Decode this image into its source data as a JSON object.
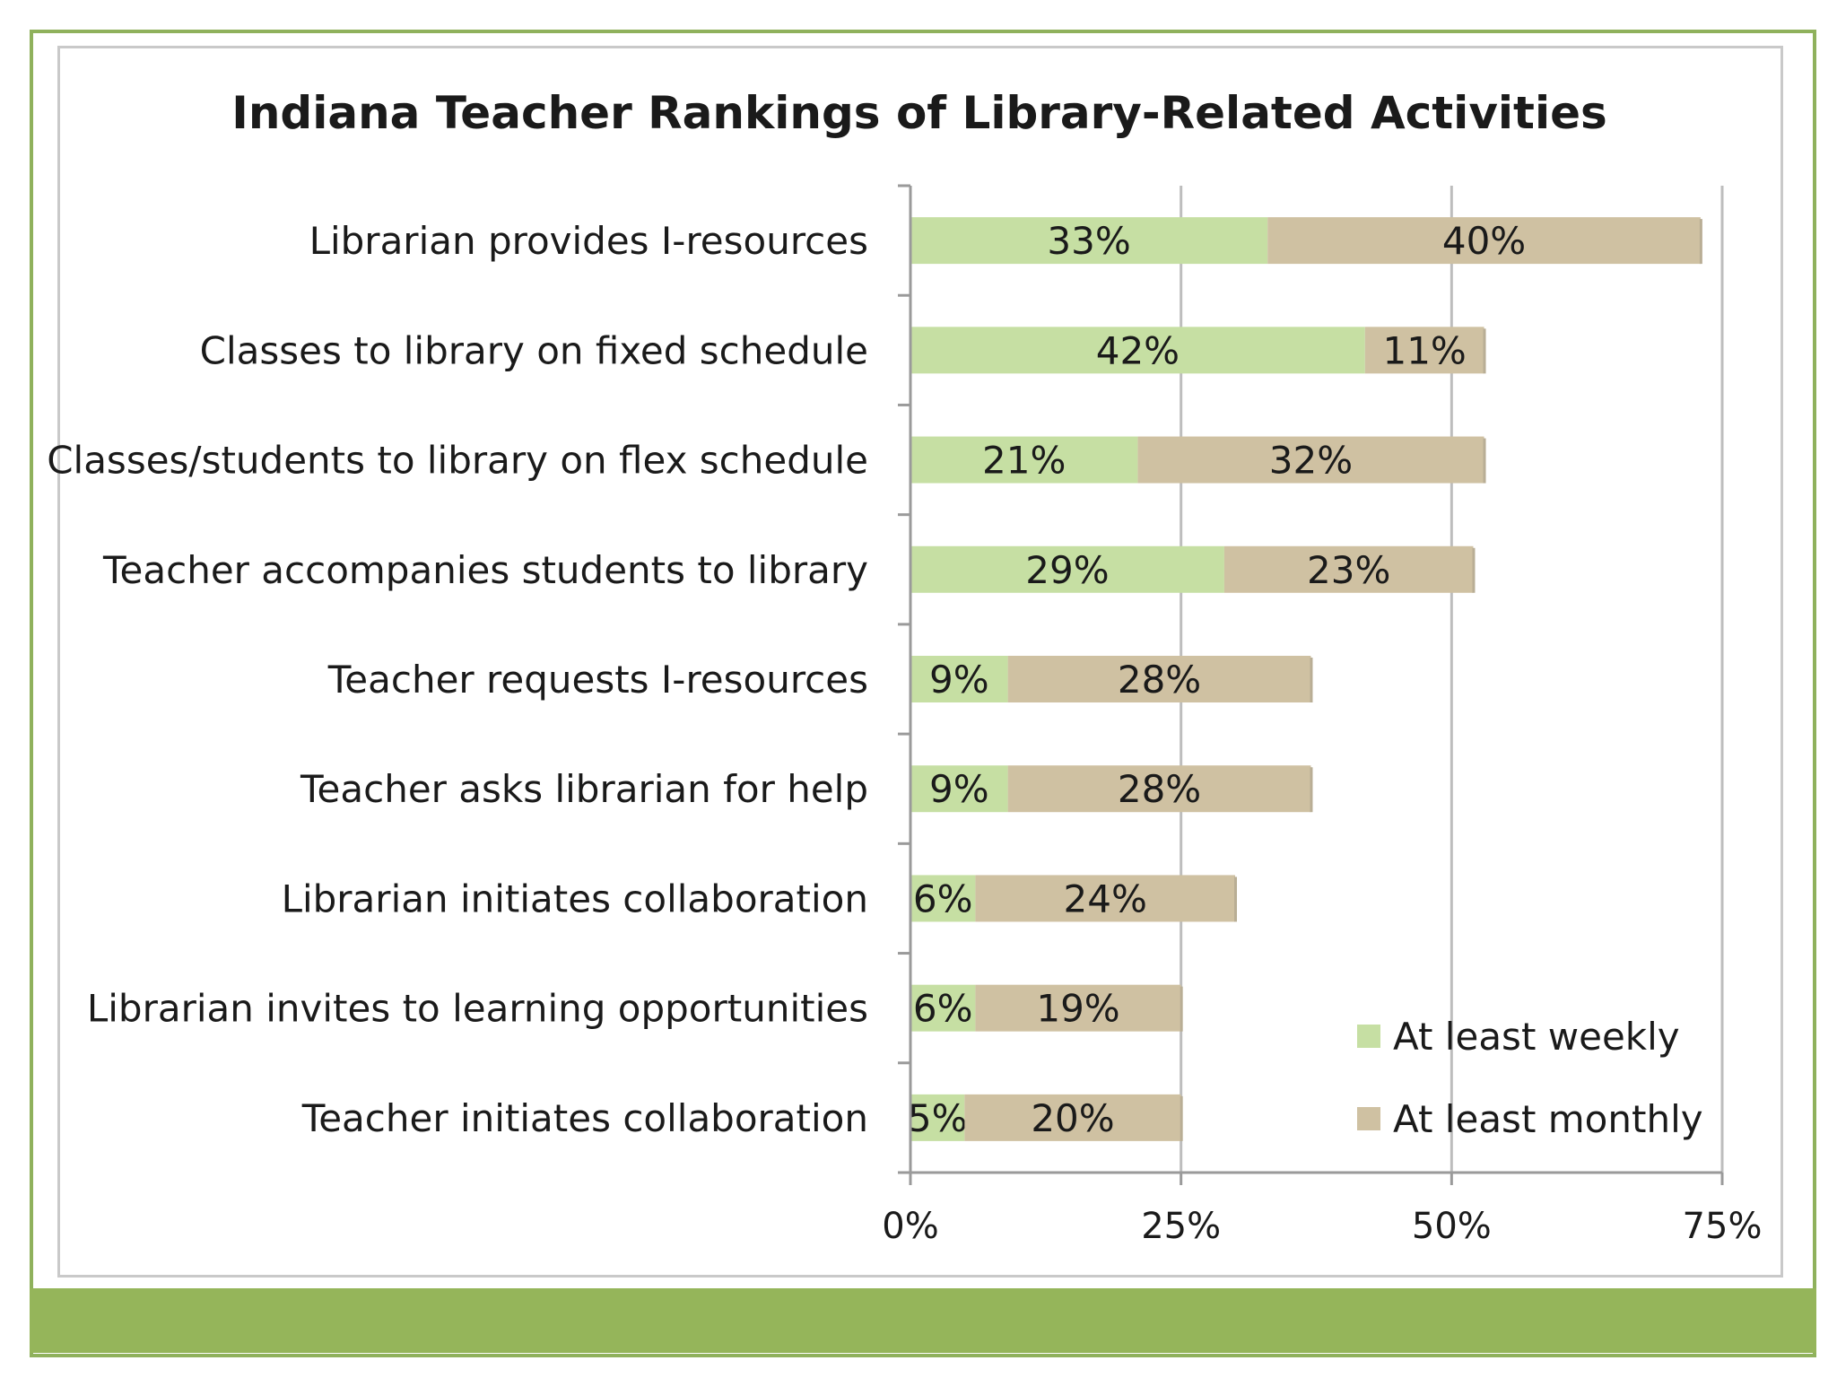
{
  "chart_data": {
    "type": "bar",
    "orientation": "horizontal",
    "stacked": true,
    "title": "Indiana Teacher Rankings of Library-Related Activities",
    "xlabel": "",
    "ylabel": "",
    "categories": [
      "Librarian provides I-resources",
      "Classes to library on fixed schedule",
      "Classes/students to library on flex schedule",
      "Teacher accompanies students to library",
      "Teacher requests I-resources",
      "Teacher asks librarian for help",
      "Librarian initiates collaboration",
      "Librarian invites to learning opportunities",
      "Teacher initiates collaboration"
    ],
    "series": [
      {
        "name": "At least weekly",
        "color": "#c6dfa3",
        "values": [
          33,
          42,
          21,
          29,
          9,
          9,
          6,
          6,
          5
        ],
        "labels": [
          "33%",
          "42%",
          "21%",
          "29%",
          "9%",
          "9%",
          "6%",
          "6%",
          "5%"
        ]
      },
      {
        "name": "At least monthly",
        "color": "#cfc1a2",
        "values": [
          40,
          11,
          32,
          23,
          28,
          28,
          24,
          19,
          20
        ],
        "labels": [
          "40%",
          "11%",
          "32%",
          "23%",
          "28%",
          "28%",
          "24%",
          "19%",
          "20%"
        ]
      }
    ],
    "xlim": [
      0,
      75
    ],
    "xticks": [
      0,
      25,
      50,
      75
    ],
    "xtick_labels": [
      "0%",
      "25%",
      "50%",
      "75%"
    ],
    "grid": true,
    "legend_position": "bottom-right",
    "colors": {
      "frame_border": "#8fb15c",
      "footer_band": "#95b55a",
      "gridline": "#bdbdbd",
      "axis": "#9a9a9a"
    }
  }
}
